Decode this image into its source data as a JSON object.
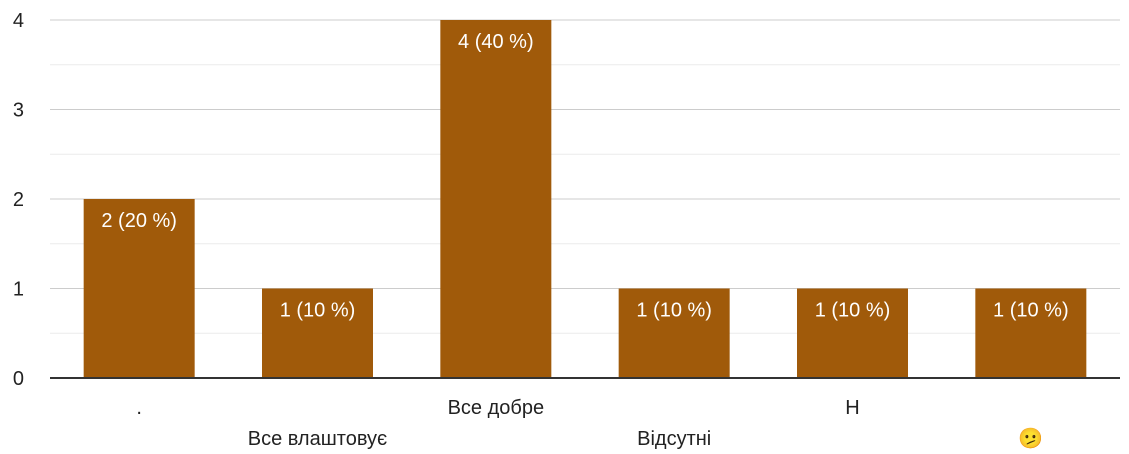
{
  "chart_data": {
    "type": "bar",
    "categories": [
      ".",
      "Все влаштовує",
      "Все добре",
      "Відсутні",
      "Н",
      "🫤"
    ],
    "values": [
      2,
      1,
      4,
      1,
      1,
      1
    ],
    "data_labels": [
      "2 (20 %)",
      "1 (10 %)",
      "4 (40 %)",
      "1 (10 %)",
      "1 (10 %)",
      "1 (10 %)"
    ],
    "yticks": [
      0,
      1,
      2,
      3,
      4
    ],
    "ylim": [
      0,
      4
    ],
    "bar_color": "#a05a0a",
    "grid": true,
    "legend": "none",
    "title": "",
    "xlabel": "",
    "ylabel": ""
  }
}
